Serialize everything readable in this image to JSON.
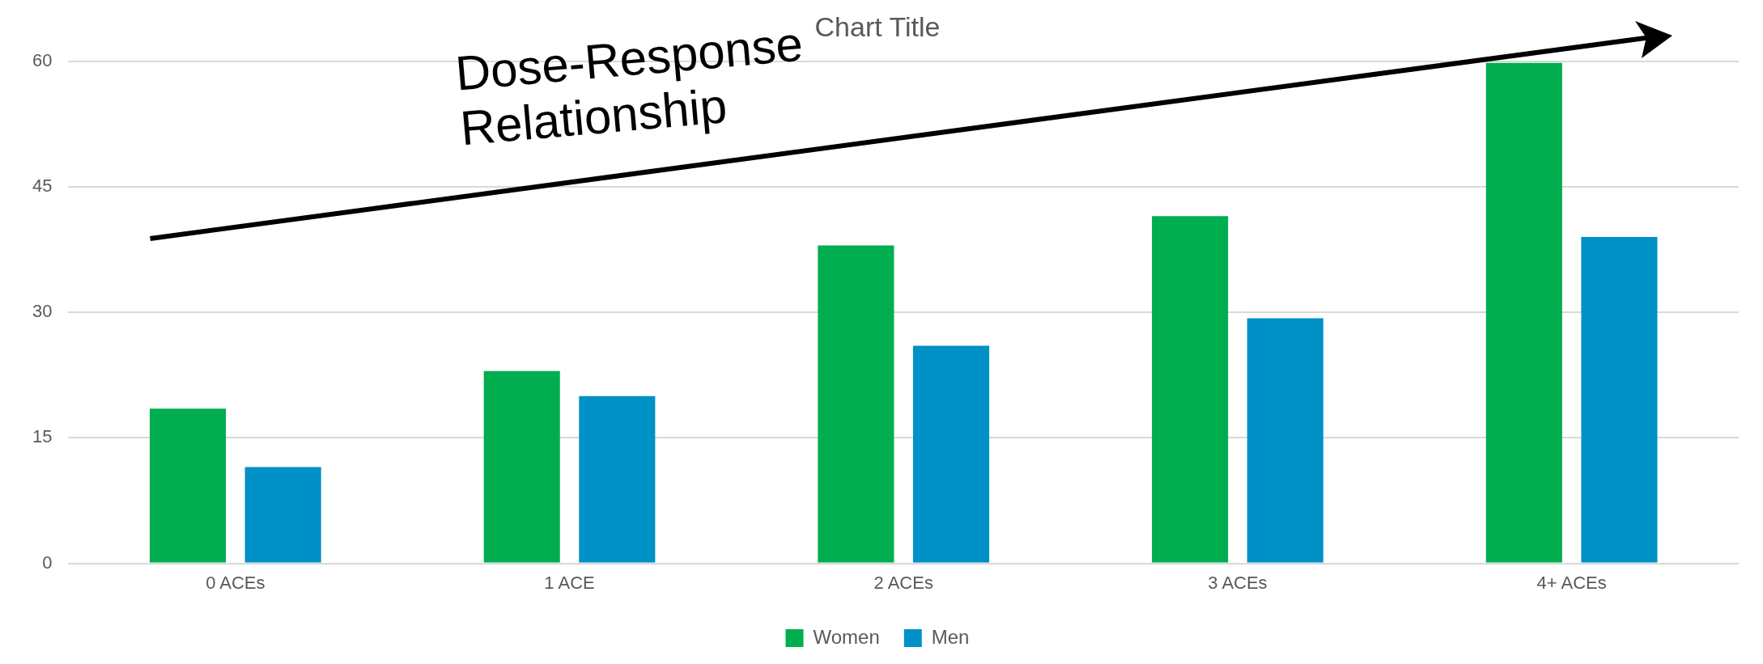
{
  "chart_data": {
    "type": "bar",
    "title": "Chart Title",
    "categories": [
      "0 ACEs",
      "1 ACE",
      "2 ACEs",
      "3 ACEs",
      "4+ ACEs"
    ],
    "series": [
      {
        "name": "Women",
        "color": "#00ad4f",
        "values": [
          18.5,
          23,
          38,
          41.5,
          59.8
        ]
      },
      {
        "name": "Men",
        "color": "#0091c6",
        "values": [
          11.5,
          20,
          26,
          29.3,
          39
        ]
      }
    ],
    "ylim": [
      0,
      60
    ],
    "yticks": [
      0,
      15,
      30,
      45,
      60
    ],
    "grid": "y",
    "legend": "bottom",
    "annotations": [
      "Dose-Response Relationship"
    ]
  }
}
